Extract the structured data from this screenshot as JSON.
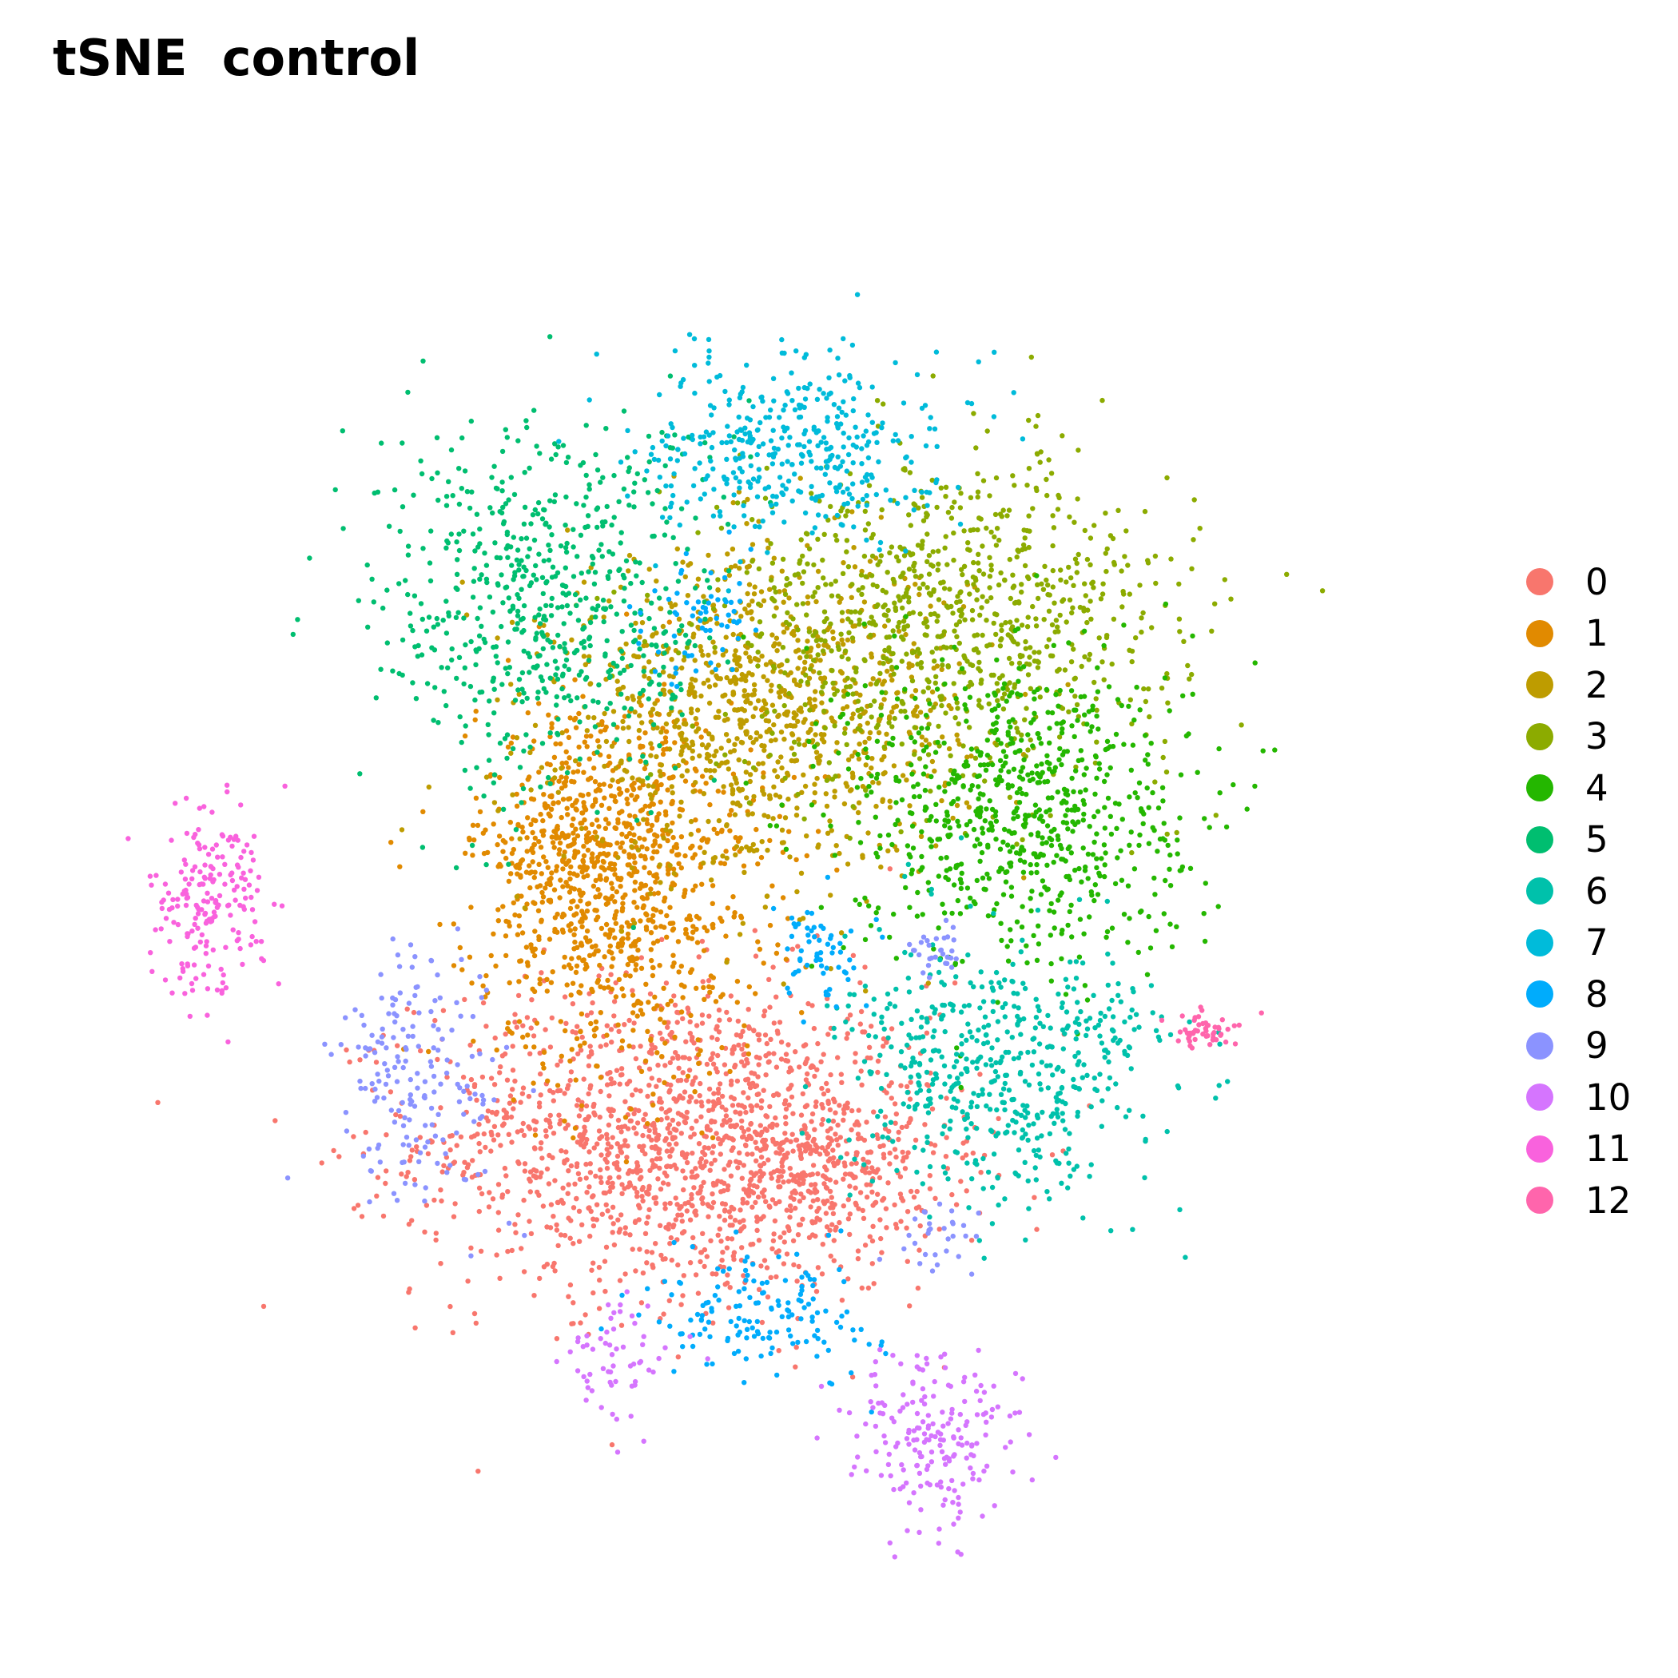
{
  "chart_data": {
    "type": "scatter",
    "title": "tSNE  control",
    "xlabel": "",
    "ylabel": "",
    "axes_visible": false,
    "grid": false,
    "xlim": [
      -45,
      45
    ],
    "ylim": [
      -45,
      45
    ],
    "legend_position": "right",
    "point_size": "small",
    "series": [
      {
        "name": "0",
        "color": "#F8766D",
        "clusters": [
          {
            "cx": -6,
            "cy": -16,
            "sx": 9,
            "sy": 5,
            "n": 1500
          },
          {
            "cx": 5,
            "cy": -18,
            "sx": 4,
            "sy": 3,
            "n": 250
          }
        ]
      },
      {
        "name": "1",
        "color": "#E18A00",
        "clusters": [
          {
            "cx": -10,
            "cy": 0,
            "sx": 5,
            "sy": 6,
            "n": 900
          },
          {
            "cx": -14,
            "cy": 3,
            "sx": 3,
            "sy": 3,
            "n": 200
          }
        ]
      },
      {
        "name": "2",
        "color": "#BE9C00",
        "clusters": [
          {
            "cx": 0,
            "cy": 11,
            "sx": 7,
            "sy": 5,
            "n": 1000
          }
        ]
      },
      {
        "name": "3",
        "color": "#8CAB00",
        "clusters": [
          {
            "cx": 13,
            "cy": 17,
            "sx": 8,
            "sy": 5,
            "n": 900
          }
        ]
      },
      {
        "name": "4",
        "color": "#24B700",
        "clusters": [
          {
            "cx": 18,
            "cy": 5,
            "sx": 6,
            "sy": 5,
            "n": 750
          }
        ]
      },
      {
        "name": "5",
        "color": "#00BE70",
        "clusters": [
          {
            "cx": -15,
            "cy": 18,
            "sx": 6,
            "sy": 6,
            "n": 650
          }
        ]
      },
      {
        "name": "6",
        "color": "#00C1AB",
        "clusters": [
          {
            "cx": 16,
            "cy": -12,
            "sx": 5,
            "sy": 4,
            "n": 500
          },
          {
            "cx": 25,
            "cy": -9,
            "sx": 2,
            "sy": 2,
            "n": 50
          }
        ]
      },
      {
        "name": "7",
        "color": "#00BBDA",
        "clusters": [
          {
            "cx": 2,
            "cy": 28,
            "sx": 5,
            "sy": 3,
            "n": 400
          }
        ]
      },
      {
        "name": "8",
        "color": "#00ACFC",
        "clusters": [
          {
            "cx": 0,
            "cy": -27,
            "sx": 4,
            "sy": 2,
            "n": 150
          },
          {
            "cx": -4,
            "cy": 17,
            "sx": 2,
            "sy": 2,
            "n": 60
          },
          {
            "cx": 4,
            "cy": -4,
            "sx": 2,
            "sy": 2,
            "n": 60
          }
        ]
      },
      {
        "name": "9",
        "color": "#8B93FF",
        "clusters": [
          {
            "cx": -24,
            "cy": -12,
            "sx": 3,
            "sy": 4,
            "n": 180
          },
          {
            "cx": 12,
            "cy": -4,
            "sx": 1,
            "sy": 1,
            "n": 30
          },
          {
            "cx": 13,
            "cy": -22,
            "sx": 1.5,
            "sy": 1,
            "n": 30
          }
        ]
      },
      {
        "name": "10",
        "color": "#D575FE",
        "clusters": [
          {
            "cx": -10,
            "cy": -30,
            "sx": 2,
            "sy": 2,
            "n": 60
          },
          {
            "cx": 12,
            "cy": -35,
            "sx": 3,
            "sy": 3,
            "n": 200
          }
        ]
      },
      {
        "name": "11",
        "color": "#F962DD",
        "clusters": [
          {
            "cx": -39,
            "cy": -1,
            "sx": 2,
            "sy": 3,
            "n": 200
          }
        ]
      },
      {
        "name": "12",
        "color": "#FF65AC",
        "clusters": [
          {
            "cx": 31,
            "cy": -9,
            "sx": 1.2,
            "sy": 0.6,
            "n": 50
          }
        ]
      }
    ]
  }
}
